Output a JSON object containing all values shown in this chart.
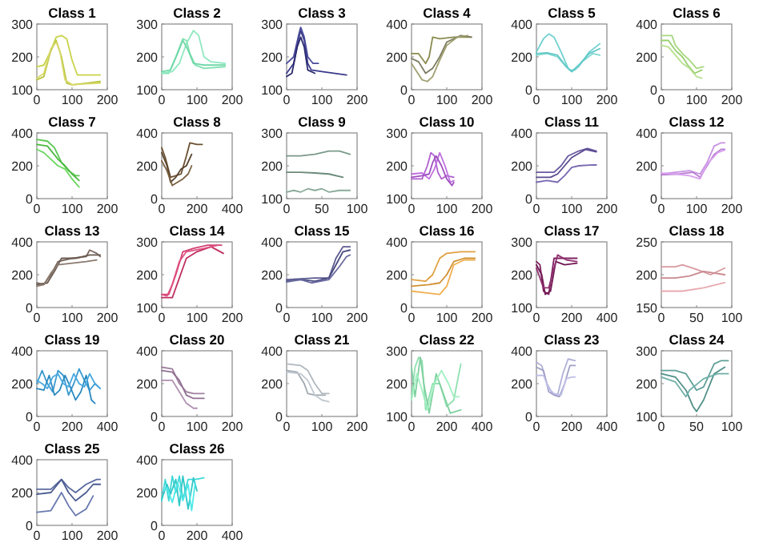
{
  "chart_data": [
    {
      "type": "line",
      "title": "Class 1",
      "xlim": [
        0,
        200
      ],
      "ylim": [
        100,
        300
      ],
      "xticks": [
        0,
        100,
        200
      ],
      "yticks": [
        100,
        200,
        300
      ],
      "series": [
        {
          "color": "#c8d44a",
          "x": [
            0,
            20,
            40,
            55,
            70,
            85,
            100,
            115,
            140,
            180
          ],
          "values": [
            170,
            175,
            220,
            260,
            265,
            255,
            190,
            145,
            145,
            145
          ]
        },
        {
          "color": "#b5c43a",
          "x": [
            0,
            20,
            40,
            55,
            70,
            85,
            100,
            140,
            180
          ],
          "values": [
            130,
            140,
            220,
            250,
            200,
            120,
            115,
            120,
            125
          ]
        },
        {
          "color": "#d9d86a",
          "x": [
            0,
            20,
            40,
            55,
            65,
            80,
            100,
            140,
            180
          ],
          "values": [
            135,
            150,
            225,
            245,
            220,
            130,
            115,
            118,
            120
          ]
        }
      ]
    },
    {
      "type": "line",
      "title": "Class 2",
      "xlim": [
        0,
        200
      ],
      "ylim": [
        100,
        300
      ],
      "xticks": [
        0,
        100,
        200
      ],
      "yticks": [
        100,
        200,
        300
      ],
      "series": [
        {
          "color": "#7fe0b0",
          "x": [
            0,
            20,
            40,
            60,
            70,
            80,
            95,
            120,
            180
          ],
          "values": [
            150,
            150,
            200,
            255,
            250,
            210,
            175,
            165,
            170
          ]
        },
        {
          "color": "#90e8c0",
          "x": [
            0,
            30,
            50,
            70,
            90,
            105,
            120,
            140,
            180
          ],
          "values": [
            150,
            155,
            180,
            240,
            280,
            265,
            200,
            185,
            180
          ]
        },
        {
          "color": "#70d8a8",
          "x": [
            0,
            25,
            45,
            60,
            75,
            90,
            120,
            180
          ],
          "values": [
            155,
            160,
            210,
            250,
            220,
            180,
            175,
            175
          ]
        }
      ]
    },
    {
      "type": "line",
      "title": "Class 3",
      "xlim": [
        0,
        200
      ],
      "ylim": [
        100,
        300
      ],
      "xticks": [
        0,
        100,
        200
      ],
      "yticks": [
        100,
        200,
        300
      ],
      "series": [
        {
          "color": "#3a3a8a",
          "x": [
            0,
            20,
            35,
            40,
            50,
            60,
            70,
            100,
            170
          ],
          "values": [
            150,
            180,
            260,
            280,
            250,
            180,
            160,
            155,
            145
          ]
        },
        {
          "color": "#4a4a9a",
          "x": [
            0,
            20,
            35,
            40,
            50,
            60,
            75,
            90
          ],
          "values": [
            180,
            200,
            270,
            290,
            260,
            200,
            180,
            180
          ]
        },
        {
          "color": "#2a2a70",
          "x": [
            0,
            15,
            30,
            40,
            50,
            60,
            80
          ],
          "values": [
            140,
            150,
            230,
            260,
            230,
            160,
            150
          ]
        }
      ]
    },
    {
      "type": "line",
      "title": "Class 4",
      "xlim": [
        0,
        200
      ],
      "ylim": [
        0,
        400
      ],
      "xticks": [
        0,
        100,
        200
      ],
      "yticks": [
        0,
        200,
        400
      ],
      "series": [
        {
          "color": "#8b8b50",
          "x": [
            0,
            20,
            40,
            50,
            60,
            80,
            120,
            170
          ],
          "values": [
            220,
            220,
            160,
            200,
            320,
            310,
            320,
            320
          ]
        },
        {
          "color": "#7a7a60",
          "x": [
            0,
            20,
            40,
            60,
            80,
            100,
            140,
            170
          ],
          "values": [
            190,
            170,
            100,
            130,
            200,
            290,
            330,
            320
          ]
        },
        {
          "color": "#a0a070",
          "x": [
            0,
            15,
            30,
            45,
            60,
            80,
            100,
            130,
            160
          ],
          "values": [
            160,
            110,
            60,
            50,
            80,
            180,
            270,
            320,
            330
          ]
        }
      ]
    },
    {
      "type": "line",
      "title": "Class 5",
      "xlim": [
        0,
        200
      ],
      "ylim": [
        0,
        400
      ],
      "xticks": [
        0,
        100,
        200
      ],
      "yticks": [
        0,
        200,
        400
      ],
      "series": [
        {
          "color": "#70d0d0",
          "x": [
            0,
            20,
            35,
            50,
            70,
            90,
            100,
            120,
            150,
            180
          ],
          "values": [
            230,
            310,
            340,
            320,
            230,
            130,
            110,
            140,
            230,
            280
          ]
        },
        {
          "color": "#80d8d0",
          "x": [
            0,
            30,
            60,
            80,
            95,
            110,
            130,
            160,
            180
          ],
          "values": [
            210,
            220,
            200,
            150,
            120,
            120,
            170,
            220,
            210
          ]
        },
        {
          "color": "#60c8c8",
          "x": [
            0,
            30,
            60,
            85,
            100,
            120,
            150,
            180
          ],
          "values": [
            220,
            225,
            210,
            140,
            110,
            150,
            220,
            250
          ]
        }
      ]
    },
    {
      "type": "line",
      "title": "Class 6",
      "xlim": [
        0,
        200
      ],
      "ylim": [
        0,
        400
      ],
      "xticks": [
        0,
        100,
        200
      ],
      "yticks": [
        0,
        200,
        400
      ],
      "series": [
        {
          "color": "#a8d880",
          "x": [
            0,
            30,
            40,
            60,
            80,
            100,
            120
          ],
          "values": [
            330,
            330,
            270,
            220,
            180,
            130,
            140
          ]
        },
        {
          "color": "#98d070",
          "x": [
            0,
            20,
            40,
            60,
            75,
            95,
            115
          ],
          "values": [
            300,
            300,
            240,
            200,
            150,
            100,
            120
          ]
        },
        {
          "color": "#b8e090",
          "x": [
            0,
            20,
            40,
            60,
            80,
            100,
            115
          ],
          "values": [
            270,
            260,
            210,
            160,
            130,
            80,
            70
          ]
        }
      ]
    },
    {
      "type": "line",
      "title": "Class 7",
      "xlim": [
        0,
        200
      ],
      "ylim": [
        0,
        400
      ],
      "xticks": [
        0,
        100,
        200
      ],
      "yticks": [
        0,
        200,
        400
      ],
      "series": [
        {
          "color": "#5cc850",
          "x": [
            0,
            30,
            50,
            70,
            90,
            110,
            120
          ],
          "values": [
            360,
            350,
            310,
            220,
            170,
            140,
            140
          ]
        },
        {
          "color": "#4cb840",
          "x": [
            0,
            30,
            60,
            80,
            100,
            120
          ],
          "values": [
            330,
            320,
            240,
            200,
            150,
            110
          ]
        },
        {
          "color": "#6cd860",
          "x": [
            0,
            20,
            40,
            60,
            80,
            100,
            120
          ],
          "values": [
            300,
            280,
            240,
            200,
            180,
            120,
            70
          ]
        }
      ]
    },
    {
      "type": "line",
      "title": "Class 8",
      "xlim": [
        0,
        400
      ],
      "ylim": [
        0,
        400
      ],
      "xticks": [
        0,
        200,
        400
      ],
      "yticks": [
        0,
        200,
        400
      ],
      "series": [
        {
          "color": "#6a5030",
          "x": [
            0,
            20,
            50,
            80,
            110,
            140,
            160,
            200,
            230
          ],
          "values": [
            310,
            250,
            130,
            140,
            150,
            260,
            340,
            330,
            330
          ]
        },
        {
          "color": "#5a4530",
          "x": [
            0,
            30,
            50,
            80,
            110,
            140,
            170
          ],
          "values": [
            280,
            200,
            100,
            130,
            180,
            200,
            270
          ]
        },
        {
          "color": "#7a6040",
          "x": [
            0,
            30,
            60,
            90,
            120,
            150,
            170
          ],
          "values": [
            230,
            170,
            80,
            100,
            120,
            150,
            200
          ]
        }
      ]
    },
    {
      "type": "line",
      "title": "Class 9",
      "xlim": [
        0,
        100
      ],
      "ylim": [
        100,
        300
      ],
      "xticks": [
        0,
        50,
        100
      ],
      "yticks": [
        100,
        200,
        300
      ],
      "series": [
        {
          "color": "#7a9a8a",
          "x": [
            0,
            20,
            40,
            60,
            75,
            90
          ],
          "values": [
            230,
            230,
            235,
            245,
            245,
            235
          ]
        },
        {
          "color": "#6a8a7a",
          "x": [
            0,
            20,
            40,
            60,
            80
          ],
          "values": [
            180,
            180,
            178,
            175,
            165
          ]
        },
        {
          "color": "#8aaa9a",
          "x": [
            0,
            10,
            20,
            30,
            40,
            50,
            60,
            75,
            90
          ],
          "values": [
            120,
            125,
            120,
            130,
            125,
            130,
            120,
            125,
            125
          ]
        }
      ]
    },
    {
      "type": "line",
      "title": "Class 10",
      "xlim": [
        0,
        200
      ],
      "ylim": [
        100,
        300
      ],
      "xticks": [
        0,
        100,
        200
      ],
      "yticks": [
        100,
        200,
        300
      ],
      "series": [
        {
          "color": "#b060d0",
          "x": [
            0,
            30,
            45,
            55,
            65,
            75,
            85,
            100,
            120
          ],
          "values": [
            160,
            160,
            200,
            240,
            230,
            180,
            160,
            170,
            165
          ]
        },
        {
          "color": "#c070e0",
          "x": [
            0,
            30,
            50,
            65,
            80,
            95,
            110,
            120
          ],
          "values": [
            175,
            178,
            160,
            190,
            240,
            200,
            150,
            155
          ]
        },
        {
          "color": "#a050c0",
          "x": [
            0,
            30,
            50,
            60,
            70,
            85,
            100,
            115,
            120
          ],
          "values": [
            165,
            170,
            175,
            210,
            230,
            200,
            160,
            140,
            150
          ]
        }
      ]
    },
    {
      "type": "line",
      "title": "Class 11",
      "xlim": [
        0,
        200
      ],
      "ylim": [
        0,
        400
      ],
      "xticks": [
        0,
        100,
        200
      ],
      "yticks": [
        0,
        200,
        400
      ],
      "series": [
        {
          "color": "#6a5aa0",
          "x": [
            0,
            50,
            70,
            90,
            120,
            145,
            170
          ],
          "values": [
            160,
            160,
            200,
            260,
            290,
            305,
            290
          ]
        },
        {
          "color": "#5a4a90",
          "x": [
            0,
            40,
            60,
            80,
            100,
            140,
            160,
            170
          ],
          "values": [
            130,
            130,
            150,
            200,
            250,
            300,
            290,
            285
          ]
        },
        {
          "color": "#7a6ab0",
          "x": [
            0,
            30,
            60,
            80,
            100,
            120,
            160,
            170
          ],
          "values": [
            100,
            110,
            100,
            140,
            190,
            200,
            205,
            205
          ]
        }
      ]
    },
    {
      "type": "line",
      "title": "Class 12",
      "xlim": [
        0,
        200
      ],
      "ylim": [
        0,
        400
      ],
      "xticks": [
        0,
        100,
        200
      ],
      "yticks": [
        0,
        200,
        400
      ],
      "series": [
        {
          "color": "#c890e0",
          "x": [
            0,
            40,
            80,
            110,
            130,
            150,
            170,
            180
          ],
          "values": [
            150,
            160,
            170,
            150,
            220,
            320,
            340,
            340
          ]
        },
        {
          "color": "#b880d0",
          "x": [
            0,
            50,
            90,
            110,
            130,
            150,
            170,
            180
          ],
          "values": [
            145,
            150,
            160,
            130,
            200,
            270,
            300,
            300
          ]
        },
        {
          "color": "#d8a0f0",
          "x": [
            0,
            40,
            80,
            110,
            130,
            160,
            180
          ],
          "values": [
            155,
            150,
            140,
            120,
            210,
            280,
            295
          ]
        }
      ]
    },
    {
      "type": "line",
      "title": "Class 13",
      "xlim": [
        0,
        200
      ],
      "ylim": [
        0,
        400
      ],
      "xticks": [
        0,
        100,
        200
      ],
      "yticks": [
        0,
        200,
        400
      ],
      "series": [
        {
          "color": "#7a6a60",
          "x": [
            0,
            20,
            40,
            60,
            100,
            140,
            150,
            170,
            180
          ],
          "values": [
            150,
            140,
            200,
            280,
            300,
            310,
            350,
            330,
            310
          ]
        },
        {
          "color": "#6a5a50",
          "x": [
            0,
            30,
            50,
            70,
            110,
            150,
            180
          ],
          "values": [
            140,
            150,
            220,
            300,
            300,
            320,
            320
          ]
        },
        {
          "color": "#8a7a70",
          "x": [
            0,
            20,
            40,
            60,
            100,
            140,
            170
          ],
          "values": [
            130,
            140,
            210,
            260,
            270,
            280,
            290
          ]
        }
      ]
    },
    {
      "type": "line",
      "title": "Class 14",
      "xlim": [
        0,
        200
      ],
      "ylim": [
        100,
        300
      ],
      "xticks": [
        0,
        100,
        200
      ],
      "yticks": [
        100,
        200,
        300
      ],
      "series": [
        {
          "color": "#d04070",
          "x": [
            0,
            20,
            40,
            60,
            90,
            130,
            170
          ],
          "values": [
            140,
            140,
            200,
            270,
            280,
            290,
            290
          ]
        },
        {
          "color": "#c03060",
          "x": [
            0,
            30,
            50,
            70,
            100,
            140,
            175
          ],
          "values": [
            130,
            130,
            190,
            250,
            270,
            285,
            265
          ]
        },
        {
          "color": "#e05080",
          "x": [
            0,
            15,
            30,
            50,
            70,
            120,
            160
          ],
          "values": [
            140,
            135,
            170,
            240,
            270,
            280,
            290
          ]
        }
      ]
    },
    {
      "type": "line",
      "title": "Class 15",
      "xlim": [
        0,
        200
      ],
      "ylim": [
        0,
        400
      ],
      "xticks": [
        0,
        100,
        200
      ],
      "yticks": [
        0,
        200,
        400
      ],
      "series": [
        {
          "color": "#5a5a90",
          "x": [
            0,
            40,
            80,
            120,
            140,
            160,
            180
          ],
          "values": [
            170,
            175,
            180,
            180,
            300,
            370,
            370
          ]
        },
        {
          "color": "#4a4a80",
          "x": [
            0,
            40,
            80,
            120,
            140,
            160,
            180
          ],
          "values": [
            160,
            170,
            160,
            180,
            260,
            340,
            350
          ]
        },
        {
          "color": "#6a6aa0",
          "x": [
            0,
            40,
            70,
            120,
            150,
            170,
            180
          ],
          "values": [
            155,
            170,
            150,
            170,
            250,
            310,
            320
          ]
        }
      ]
    },
    {
      "type": "line",
      "title": "Class 16",
      "xlim": [
        0,
        200
      ],
      "ylim": [
        0,
        400
      ],
      "xticks": [
        0,
        100,
        200
      ],
      "yticks": [
        0,
        200,
        400
      ],
      "series": [
        {
          "color": "#e0a040",
          "x": [
            0,
            40,
            60,
            80,
            100,
            140,
            180
          ],
          "values": [
            170,
            160,
            200,
            300,
            330,
            340,
            340
          ]
        },
        {
          "color": "#d09030",
          "x": [
            0,
            50,
            80,
            100,
            120,
            150,
            180
          ],
          "values": [
            130,
            140,
            150,
            200,
            280,
            300,
            300
          ]
        },
        {
          "color": "#f0b050",
          "x": [
            0,
            40,
            80,
            100,
            120,
            150,
            180
          ],
          "values": [
            100,
            90,
            80,
            130,
            260,
            290,
            290
          ]
        }
      ]
    },
    {
      "type": "line",
      "title": "Class 17",
      "xlim": [
        0,
        400
      ],
      "ylim": [
        100,
        300
      ],
      "xticks": [
        0,
        200,
        400
      ],
      "yticks": [
        100,
        200,
        300
      ],
      "series": [
        {
          "color": "#802060",
          "x": [
            0,
            20,
            40,
            70,
            100,
            150,
            230
          ],
          "values": [
            240,
            230,
            150,
            140,
            250,
            250,
            250
          ]
        },
        {
          "color": "#701850",
          "x": [
            0,
            30,
            50,
            80,
            110,
            160,
            230
          ],
          "values": [
            230,
            200,
            140,
            150,
            240,
            230,
            235
          ]
        },
        {
          "color": "#903070",
          "x": [
            0,
            40,
            70,
            90,
            120,
            170,
            230
          ],
          "values": [
            220,
            160,
            160,
            200,
            260,
            245,
            240
          ]
        }
      ]
    },
    {
      "type": "line",
      "title": "Class 18",
      "xlim": [
        0,
        100
      ],
      "ylim": [
        150,
        250
      ],
      "xticks": [
        0,
        50,
        100
      ],
      "yticks": [
        150,
        200,
        250
      ],
      "series": [
        {
          "color": "#d89aa0",
          "x": [
            0,
            20,
            30,
            50,
            70,
            90
          ],
          "values": [
            212,
            212,
            215,
            208,
            200,
            210
          ]
        },
        {
          "color": "#c88a90",
          "x": [
            0,
            20,
            40,
            60,
            90
          ],
          "values": [
            195,
            195,
            198,
            205,
            200
          ]
        },
        {
          "color": "#e8aab0",
          "x": [
            0,
            30,
            60,
            90
          ],
          "values": [
            175,
            175,
            180,
            188
          ]
        }
      ]
    },
    {
      "type": "line",
      "title": "Class 19",
      "xlim": [
        0,
        400
      ],
      "ylim": [
        0,
        400
      ],
      "xticks": [
        0,
        200,
        400
      ],
      "yticks": [
        0,
        200,
        400
      ],
      "series": [
        {
          "color": "#3a9ad0",
          "x": [
            0,
            30,
            60,
            90,
            120,
            150,
            180,
            210,
            240,
            270,
            300,
            330,
            360
          ],
          "values": [
            200,
            280,
            200,
            150,
            280,
            250,
            130,
            200,
            290,
            220,
            160,
            200,
            170
          ]
        },
        {
          "color": "#2a8ac0",
          "x": [
            0,
            40,
            70,
            100,
            130,
            160,
            190,
            220,
            250,
            280,
            310,
            330
          ],
          "values": [
            170,
            160,
            250,
            130,
            160,
            250,
            180,
            100,
            150,
            250,
            100,
            80
          ]
        },
        {
          "color": "#4aaae0",
          "x": [
            0,
            30,
            60,
            90,
            120,
            150,
            180,
            210,
            240,
            270,
            300,
            330,
            360
          ],
          "values": [
            220,
            200,
            170,
            240,
            260,
            200,
            180,
            260,
            200,
            180,
            260,
            200,
            170
          ]
        }
      ]
    },
    {
      "type": "line",
      "title": "Class 20",
      "xlim": [
        0,
        200
      ],
      "ylim": [
        0,
        400
      ],
      "xticks": [
        0,
        100,
        200
      ],
      "yticks": [
        0,
        200,
        400
      ],
      "series": [
        {
          "color": "#a080a0",
          "x": [
            0,
            30,
            50,
            70,
            90,
            120
          ],
          "values": [
            300,
            290,
            200,
            150,
            140,
            140
          ]
        },
        {
          "color": "#907090",
          "x": [
            0,
            30,
            50,
            70,
            90,
            120
          ],
          "values": [
            280,
            270,
            220,
            130,
            110,
            110
          ]
        },
        {
          "color": "#b090b0",
          "x": [
            0,
            30,
            50,
            70,
            90,
            100
          ],
          "values": [
            220,
            220,
            150,
            80,
            50,
            50
          ]
        }
      ]
    },
    {
      "type": "line",
      "title": "Class 21",
      "xlim": [
        0,
        200
      ],
      "ylim": [
        0,
        400
      ],
      "xticks": [
        0,
        100,
        200
      ],
      "yticks": [
        0,
        200,
        400
      ],
      "series": [
        {
          "color": "#b0b8c0",
          "x": [
            0,
            40,
            60,
            80,
            100,
            120
          ],
          "values": [
            320,
            310,
            280,
            200,
            140,
            140
          ]
        },
        {
          "color": "#a0a8b0",
          "x": [
            0,
            30,
            50,
            60,
            80,
            110
          ],
          "values": [
            280,
            270,
            200,
            140,
            130,
            130
          ]
        },
        {
          "color": "#c0c8d0",
          "x": [
            0,
            40,
            60,
            80,
            100,
            120
          ],
          "values": [
            270,
            260,
            220,
            130,
            100,
            90
          ]
        }
      ]
    },
    {
      "type": "line",
      "title": "Class 22",
      "xlim": [
        0,
        400
      ],
      "ylim": [
        100,
        300
      ],
      "xticks": [
        0,
        200,
        400
      ],
      "yticks": [
        100,
        200,
        300
      ],
      "series": [
        {
          "color": "#90e0b0",
          "x": [
            0,
            20,
            40,
            60,
            80,
            120,
            160,
            200,
            240,
            280
          ],
          "values": [
            160,
            250,
            280,
            270,
            120,
            200,
            200,
            130,
            150,
            260
          ]
        },
        {
          "color": "#80d0a0",
          "x": [
            0,
            20,
            50,
            70,
            100,
            140,
            180,
            220,
            280
          ],
          "values": [
            250,
            160,
            280,
            200,
            110,
            230,
            170,
            110,
            120
          ]
        },
        {
          "color": "#a0f0c0",
          "x": [
            0,
            30,
            60,
            90,
            130,
            170,
            210,
            240,
            270
          ],
          "values": [
            150,
            230,
            180,
            120,
            200,
            240,
            200,
            160,
            160
          ]
        }
      ]
    },
    {
      "type": "line",
      "title": "Class 23",
      "xlim": [
        0,
        400
      ],
      "ylim": [
        0,
        400
      ],
      "xticks": [
        0,
        200,
        400
      ],
      "yticks": [
        0,
        200,
        400
      ],
      "series": [
        {
          "color": "#b0b0d8",
          "x": [
            0,
            30,
            60,
            90,
            120,
            150,
            180,
            220
          ],
          "values": [
            330,
            310,
            200,
            140,
            130,
            260,
            350,
            340
          ]
        },
        {
          "color": "#a0a0c8",
          "x": [
            0,
            40,
            70,
            100,
            130,
            160,
            190,
            220
          ],
          "values": [
            300,
            280,
            150,
            130,
            120,
            200,
            310,
            310
          ]
        },
        {
          "color": "#c0c0e8",
          "x": [
            0,
            40,
            70,
            100,
            140,
            170,
            200,
            220
          ],
          "values": [
            250,
            250,
            170,
            140,
            130,
            230,
            240,
            240
          ]
        }
      ]
    },
    {
      "type": "line",
      "title": "Class 24",
      "xlim": [
        0,
        100
      ],
      "ylim": [
        100,
        300
      ],
      "xticks": [
        0,
        50,
        100
      ],
      "yticks": [
        100,
        200,
        300
      ],
      "series": [
        {
          "color": "#60a098",
          "x": [
            0,
            20,
            35,
            50,
            60,
            75,
            85,
            95
          ],
          "values": [
            240,
            240,
            230,
            180,
            190,
            260,
            270,
            270
          ]
        },
        {
          "color": "#509088",
          "x": [
            0,
            20,
            35,
            45,
            50,
            60,
            75,
            90
          ],
          "values": [
            230,
            220,
            180,
            130,
            115,
            150,
            230,
            250
          ]
        },
        {
          "color": "#70b0a8",
          "x": [
            0,
            20,
            35,
            40,
            60,
            80,
            95
          ],
          "values": [
            220,
            205,
            160,
            180,
            215,
            230,
            230
          ]
        }
      ]
    },
    {
      "type": "line",
      "title": "Class 25",
      "xlim": [
        0,
        200
      ],
      "ylim": [
        0,
        400
      ],
      "xticks": [
        0,
        100,
        200
      ],
      "yticks": [
        0,
        200,
        400
      ],
      "series": [
        {
          "color": "#5a6aa0",
          "x": [
            0,
            40,
            70,
            90,
            110,
            140,
            170,
            180
          ],
          "values": [
            220,
            220,
            280,
            230,
            200,
            250,
            280,
            280
          ]
        },
        {
          "color": "#4a5a90",
          "x": [
            0,
            40,
            70,
            90,
            110,
            140,
            160,
            180
          ],
          "values": [
            190,
            200,
            280,
            200,
            150,
            200,
            250,
            250
          ]
        },
        {
          "color": "#6a7ab0",
          "x": [
            0,
            40,
            70,
            90,
            110,
            140,
            160
          ],
          "values": [
            80,
            90,
            200,
            120,
            60,
            100,
            180
          ]
        }
      ]
    },
    {
      "type": "line",
      "title": "Class 26",
      "xlim": [
        0,
        400
      ],
      "ylim": [
        0,
        400
      ],
      "xticks": [
        0,
        200,
        400
      ],
      "yticks": [
        0,
        200,
        400
      ],
      "series": [
        {
          "color": "#40d8d8",
          "x": [
            0,
            20,
            40,
            60,
            80,
            100,
            120,
            150,
            190,
            240
          ],
          "values": [
            150,
            280,
            150,
            300,
            200,
            300,
            160,
            280,
            280,
            290
          ]
        },
        {
          "color": "#30c8c8",
          "x": [
            0,
            30,
            50,
            80,
            100,
            120,
            150,
            180,
            200
          ],
          "values": [
            160,
            250,
            190,
            280,
            120,
            300,
            100,
            290,
            210
          ]
        },
        {
          "color": "#50e8e8",
          "x": [
            0,
            30,
            60,
            90,
            120,
            150,
            170,
            190
          ],
          "values": [
            200,
            230,
            140,
            260,
            150,
            250,
            90,
            260
          ]
        }
      ]
    }
  ]
}
